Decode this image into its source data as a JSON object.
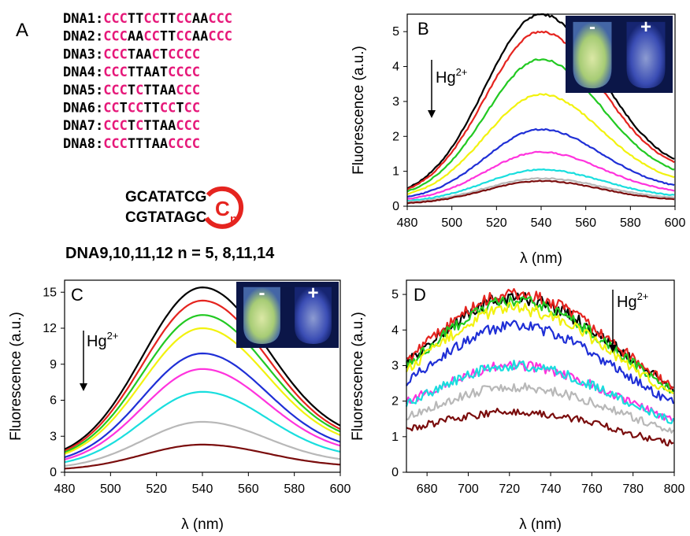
{
  "panel_a": {
    "label": "A",
    "sequences": [
      {
        "name": "DNA1",
        "segments": [
          [
            "CCC",
            "c"
          ],
          [
            "TT",
            "b"
          ],
          [
            "CC",
            "c"
          ],
          [
            "TT",
            "b"
          ],
          [
            "CC",
            "c"
          ],
          [
            "AA",
            "b"
          ],
          [
            "CCC",
            "c"
          ]
        ]
      },
      {
        "name": "DNA2",
        "segments": [
          [
            "CCC",
            "c"
          ],
          [
            "AA",
            "b"
          ],
          [
            "CC",
            "c"
          ],
          [
            "TT",
            "b"
          ],
          [
            "CC",
            "c"
          ],
          [
            "AA",
            "b"
          ],
          [
            "CCC",
            "c"
          ]
        ]
      },
      {
        "name": "DNA3",
        "segments": [
          [
            "CCC",
            "c"
          ],
          [
            "TAA",
            "b"
          ],
          [
            "C",
            "c"
          ],
          [
            "T",
            "b"
          ],
          [
            "CCCC",
            "c"
          ]
        ]
      },
      {
        "name": "DNA4",
        "segments": [
          [
            "CCC",
            "c"
          ],
          [
            "TTAAT",
            "b"
          ],
          [
            "CCCC",
            "c"
          ]
        ]
      },
      {
        "name": "DNA5",
        "segments": [
          [
            "CCC",
            "c"
          ],
          [
            "T",
            "b"
          ],
          [
            "C",
            "c"
          ],
          [
            "TTAA",
            "b"
          ],
          [
            "CCC",
            "c"
          ]
        ]
      },
      {
        "name": "DNA6",
        "segments": [
          [
            "CC",
            "c"
          ],
          [
            "T",
            "b"
          ],
          [
            "CC",
            "c"
          ],
          [
            "TT",
            "b"
          ],
          [
            "CC",
            "c"
          ],
          [
            "T",
            "b"
          ],
          [
            "CC",
            "c"
          ]
        ]
      },
      {
        "name": "DNA7",
        "segments": [
          [
            "CCC",
            "c"
          ],
          [
            "T",
            "b"
          ],
          [
            "C",
            "c"
          ],
          [
            "TTAA",
            "b"
          ],
          [
            "CCC",
            "c"
          ]
        ]
      },
      {
        "name": "DNA8",
        "segments": [
          [
            "CCC",
            "c"
          ],
          [
            "TTTAA",
            "b"
          ],
          [
            "CCCC",
            "c"
          ]
        ]
      }
    ],
    "hairpin_top": "GCATATCG",
    "hairpin_bottom": "CGTATAGC",
    "loop_letter": "C",
    "loop_subscript": "n",
    "caption": "DNA9,10,11,12 n = 5, 8,11,14"
  },
  "colors": {
    "pink": "#e6197a",
    "red": "#e5241f",
    "inset_bg": "#0b1648",
    "series": [
      "#000000",
      "#e5241f",
      "#22c922",
      "#f2f20f",
      "#1f2fd6",
      "#ff33dd",
      "#19dede",
      "#b8b8b8",
      "#7a0c0c"
    ]
  },
  "chart_data": [
    {
      "panel": "B",
      "type": "line",
      "xlabel": "λ (nm)",
      "ylabel": "Fluorescence (a.u.)",
      "xlim": [
        480,
        600
      ],
      "ylim": [
        0,
        5.5
      ],
      "xticks": [
        480,
        500,
        520,
        540,
        560,
        580,
        600
      ],
      "yticks": [
        0,
        1,
        2,
        3,
        4,
        5
      ],
      "annotation": "Hg2+",
      "inset_labels": [
        "-",
        "+"
      ],
      "peak_x": 540,
      "width_left": 25,
      "width_right": 27,
      "noise": 0.02,
      "series": [
        {
          "peak": 5.5,
          "base_left": 0.22,
          "base_right": 0.95
        },
        {
          "peak": 5.0,
          "base_left": 0.22,
          "base_right": 0.9
        },
        {
          "peak": 4.2,
          "base_left": 0.2,
          "base_right": 0.75
        },
        {
          "peak": 3.2,
          "base_left": 0.18,
          "base_right": 0.6
        },
        {
          "peak": 2.2,
          "base_left": 0.15,
          "base_right": 0.45
        },
        {
          "peak": 1.55,
          "base_left": 0.13,
          "base_right": 0.35
        },
        {
          "peak": 1.05,
          "base_left": 0.1,
          "base_right": 0.25
        },
        {
          "peak": 0.8,
          "base_left": 0.08,
          "base_right": 0.2
        },
        {
          "peak": 0.72,
          "base_left": 0.05,
          "base_right": 0.15
        }
      ]
    },
    {
      "panel": "C",
      "type": "line",
      "xlabel": "λ (nm)",
      "ylabel": "Fluorescence (a.u.)",
      "xlim": [
        480,
        600
      ],
      "ylim": [
        0,
        16
      ],
      "xticks": [
        480,
        500,
        520,
        540,
        560,
        580,
        600
      ],
      "yticks": [
        0,
        3,
        6,
        9,
        12,
        15
      ],
      "annotation": "Hg2+",
      "inset_labels": [
        "-",
        "+"
      ],
      "peak_x": 540,
      "width_left": 26,
      "width_right": 28,
      "noise": 0.0,
      "series": [
        {
          "peak": 15.4,
          "base_left": 0.9,
          "base_right": 2.6
        },
        {
          "peak": 14.3,
          "base_left": 0.85,
          "base_right": 2.4
        },
        {
          "peak": 13.1,
          "base_left": 0.8,
          "base_right": 2.3
        },
        {
          "peak": 12.0,
          "base_left": 0.75,
          "base_right": 2.1
        },
        {
          "peak": 9.9,
          "base_left": 0.6,
          "base_right": 1.7
        },
        {
          "peak": 8.6,
          "base_left": 0.5,
          "base_right": 1.5
        },
        {
          "peak": 6.7,
          "base_left": 0.4,
          "base_right": 1.15
        },
        {
          "peak": 4.2,
          "base_left": 0.25,
          "base_right": 0.75
        },
        {
          "peak": 2.3,
          "base_left": 0.15,
          "base_right": 0.45
        }
      ]
    },
    {
      "panel": "D",
      "type": "line",
      "xlabel": "λ (nm)",
      "ylabel": "Fluorescence (a.u.)",
      "xlim": [
        670,
        800
      ],
      "ylim": [
        0,
        5.4
      ],
      "xticks": [
        680,
        700,
        720,
        740,
        760,
        780,
        800
      ],
      "yticks": [
        0,
        1,
        2,
        3,
        4,
        5
      ],
      "annotation": "Hg2+",
      "peak_x": 722,
      "width_left": 40,
      "width_right": 52,
      "noise": 0.12,
      "series": [
        {
          "peak": 4.9,
          "base_left": 1.7,
          "base_right": 1.1
        },
        {
          "peak": 5.0,
          "base_left": 1.75,
          "base_right": 1.1
        },
        {
          "peak": 4.8,
          "base_left": 1.65,
          "base_right": 1.05
        },
        {
          "peak": 4.6,
          "base_left": 1.55,
          "base_right": 1.0
        },
        {
          "peak": 4.1,
          "base_left": 1.4,
          "base_right": 0.9
        },
        {
          "peak": 3.0,
          "base_left": 1.2,
          "base_right": 0.7
        },
        {
          "peak": 3.0,
          "base_left": 1.1,
          "base_right": 0.65
        },
        {
          "peak": 2.4,
          "base_left": 0.95,
          "base_right": 0.55
        },
        {
          "peak": 1.7,
          "base_left": 0.85,
          "base_right": 0.35
        }
      ]
    }
  ]
}
